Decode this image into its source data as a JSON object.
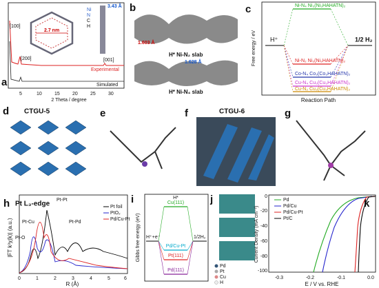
{
  "panels": {
    "a": {
      "letter": "a",
      "xlabel": "2 Theta / degree",
      "xticks": [
        "5",
        "10",
        "15",
        "20",
        "25",
        "30"
      ],
      "peaks": [
        "[100]",
        "[200]",
        "[001]"
      ],
      "legend": [
        "Experimental",
        "Simulated"
      ],
      "annotations": [
        "2.7 nm",
        "3.43 Å"
      ],
      "elements": [
        "Ni",
        "N",
        "C",
        "H"
      ]
    },
    "b": {
      "letter": "b",
      "labels": [
        "1.603 Å",
        "H* Ni-N₂ slab",
        "1.628 Å",
        "H* Ni-N₄ slab"
      ]
    },
    "c": {
      "letter": "c",
      "ylabel": "Free energy / eV",
      "xlabel": "Reaction Path",
      "start": "H⁺",
      "end": "1/2 H₂",
      "levels": [
        "Ni-N₄  Ni₃(Ni₃HAHATN)₂",
        "Ni-N₂  Ni₃(Ni₃HAHATN)₂",
        "Co-N₄  Co₃(Co₃HAHATN)₂",
        "Cu-N₄  Cu₃(Cu₃HAHATN)₂",
        "Cu-N₂  Cu₃(Cu₃HAHATN)₂"
      ]
    },
    "d": {
      "letter": "d",
      "title": "CTGU-5"
    },
    "e": {
      "letter": "e"
    },
    "f": {
      "letter": "f",
      "title": "CTGU-6"
    },
    "g": {
      "letter": "g"
    },
    "h": {
      "letter": "h",
      "title": "Pt L₃-edge",
      "ylabel": "|FT k³χ(k)| (a.u.)",
      "xlabel": "R (Å)",
      "xticks": [
        "0",
        "1",
        "2",
        "3",
        "4",
        "5",
        "6"
      ],
      "legend": [
        "Pt foil",
        "PtO₂",
        "Pd/Cu-Pt"
      ],
      "annotations": [
        "Pt-Pt",
        "Pt-Cu",
        "Pt-Pd",
        "Pt-O"
      ]
    },
    "i": {
      "letter": "i",
      "ylabel": "Gibbs free energy (eV)",
      "top": "H*",
      "start": "H⁺+e⁻",
      "end": "1/2H₂",
      "levels": [
        "Cu(111)",
        "Pd/Cu-Pt",
        "Pt(111)",
        "Pd(111)"
      ]
    },
    "j": {
      "letter": "j",
      "legend": [
        "Pd",
        "Pt",
        "Cu",
        "H"
      ]
    },
    "k": {
      "letter": "k",
      "ylabel": "Current Density (mA cm⁻²)",
      "xlabel": "E / V vs. RHE",
      "xticks": [
        "-0.3",
        "-0.2",
        "-0.1",
        "0.0"
      ],
      "yticks": [
        "0",
        "-20",
        "-40",
        "-60",
        "-80",
        "-100"
      ],
      "legend": [
        "Pd",
        "Pd/Cu",
        "Pd/Cu-Pt",
        "Pt/C"
      ]
    }
  }
}
